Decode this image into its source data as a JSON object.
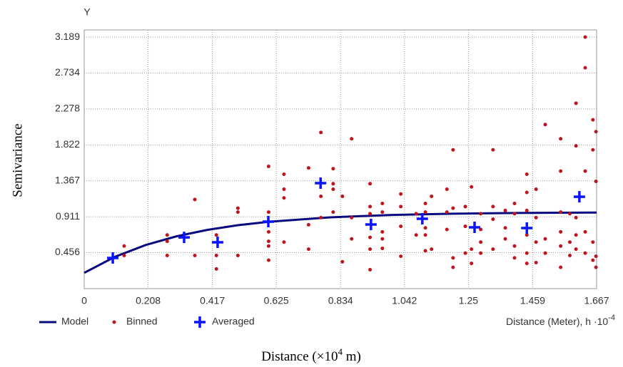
{
  "chart_data": {
    "type": "scatter",
    "axis_letter": "Y",
    "ylabel": "Semivariance",
    "x_unit_label": "Distance (Meter), h ·10",
    "x_unit_exponent": "-4",
    "caption": {
      "before": "Distance (×10",
      "superscript": "4",
      "after": " m)"
    },
    "xlim": [
      0,
      1.667
    ],
    "ylim": [
      0,
      3.28
    ],
    "xticks": [
      0,
      0.208,
      0.417,
      0.625,
      0.834,
      1.042,
      1.25,
      1.459,
      1.667
    ],
    "yticks": [
      0.456,
      0.911,
      1.367,
      1.822,
      2.278,
      2.734,
      3.189
    ],
    "grid": true,
    "series": [
      {
        "name": "Model",
        "color": "#0a0a80",
        "marker": "line",
        "x": [
          0,
          0.1,
          0.2,
          0.3,
          0.4,
          0.5,
          0.6,
          0.8,
          1.0,
          1.2,
          1.4,
          1.667
        ],
        "values": [
          0.2,
          0.403,
          0.553,
          0.663,
          0.744,
          0.804,
          0.847,
          0.904,
          0.934,
          0.95,
          0.959,
          0.965
        ]
      },
      {
        "name": "Binned",
        "color": "#c0141c",
        "marker": "dot",
        "x": [
          0.13,
          0.13,
          0.27,
          0.27,
          0.27,
          0.36,
          0.36,
          0.43,
          0.43,
          0.43,
          0.5,
          0.5,
          0.5,
          0.6,
          0.6,
          0.6,
          0.6,
          0.6,
          0.6,
          0.65,
          0.65,
          0.65,
          0.65,
          0.73,
          0.73,
          0.73,
          0.77,
          0.77,
          0.77,
          0.81,
          0.81,
          0.81,
          0.81,
          0.84,
          0.84,
          0.87,
          0.87,
          0.87,
          0.93,
          0.93,
          0.93,
          0.93,
          0.93,
          0.93,
          0.97,
          0.97,
          0.97,
          0.97,
          0.97,
          1.03,
          1.03,
          1.03,
          1.03,
          1.08,
          1.08,
          1.11,
          1.11,
          1.11,
          1.11,
          1.11,
          1.13,
          1.13,
          1.18,
          1.18,
          1.18,
          1.2,
          1.2,
          1.2,
          1.2,
          1.24,
          1.24,
          1.24,
          1.26,
          1.26,
          1.26,
          1.29,
          1.29,
          1.29,
          1.29,
          1.33,
          1.33,
          1.33,
          1.33,
          1.37,
          1.37,
          1.37,
          1.4,
          1.4,
          1.4,
          1.4,
          1.44,
          1.44,
          1.44,
          1.44,
          1.44,
          1.44,
          1.47,
          1.47,
          1.47,
          1.47,
          1.5,
          1.5,
          1.5,
          1.55,
          1.55,
          1.55,
          1.55,
          1.55,
          1.55,
          1.58,
          1.58,
          1.58,
          1.6,
          1.6,
          1.6,
          1.6,
          1.6,
          1.63,
          1.63,
          1.63,
          1.63,
          1.63,
          1.655,
          1.655,
          1.655,
          1.655,
          1.665,
          1.665,
          1.665,
          1.665
        ],
        "values": [
          0.54,
          0.42,
          0.68,
          0.6,
          0.42,
          1.13,
          0.42,
          0.68,
          0.42,
          0.25,
          1.02,
          0.97,
          0.42,
          1.55,
          0.97,
          0.72,
          0.6,
          0.54,
          0.36,
          1.45,
          1.26,
          1.15,
          0.59,
          1.53,
          0.81,
          0.5,
          1.98,
          1.17,
          0.9,
          1.52,
          1.33,
          1.26,
          0.97,
          1.17,
          0.34,
          1.9,
          0.9,
          0.63,
          1.33,
          1.04,
          0.95,
          0.65,
          0.5,
          0.24,
          1.08,
          0.97,
          0.72,
          0.63,
          0.51,
          1.2,
          1.04,
          0.79,
          0.41,
          0.95,
          0.68,
          1.08,
          0.97,
          0.77,
          0.68,
          0.48,
          1.17,
          0.5,
          1.26,
          0.97,
          0.75,
          1.76,
          1.02,
          0.39,
          0.27,
          1.04,
          0.79,
          0.45,
          1.29,
          0.5,
          0.32,
          0.95,
          0.75,
          0.59,
          0.45,
          1.76,
          1.04,
          0.88,
          0.5,
          0.99,
          0.77,
          0.63,
          1.08,
          0.95,
          0.54,
          0.39,
          1.45,
          1.22,
          0.99,
          0.68,
          0.45,
          0.32,
          1.26,
          0.9,
          0.59,
          0.33,
          2.08,
          0.63,
          0.45,
          1.9,
          1.49,
          0.97,
          0.72,
          0.54,
          0.27,
          0.95,
          0.59,
          0.42,
          2.35,
          1.81,
          0.9,
          0.68,
          0.5,
          3.19,
          2.8,
          1.49,
          0.72,
          0.45,
          2.14,
          1.76,
          0.59,
          0.36,
          1.99,
          1.36,
          0.41,
          0.27
        ]
      },
      {
        "name": "Averaged",
        "color": "#0a14ff",
        "marker": "plus",
        "x": [
          0.093,
          0.325,
          0.434,
          0.599,
          0.769,
          0.933,
          1.1,
          1.27,
          1.44,
          1.611
        ],
        "values": [
          0.388,
          0.65,
          0.587,
          0.849,
          1.337,
          0.813,
          0.885,
          0.777,
          0.768,
          1.165
        ]
      }
    ]
  }
}
